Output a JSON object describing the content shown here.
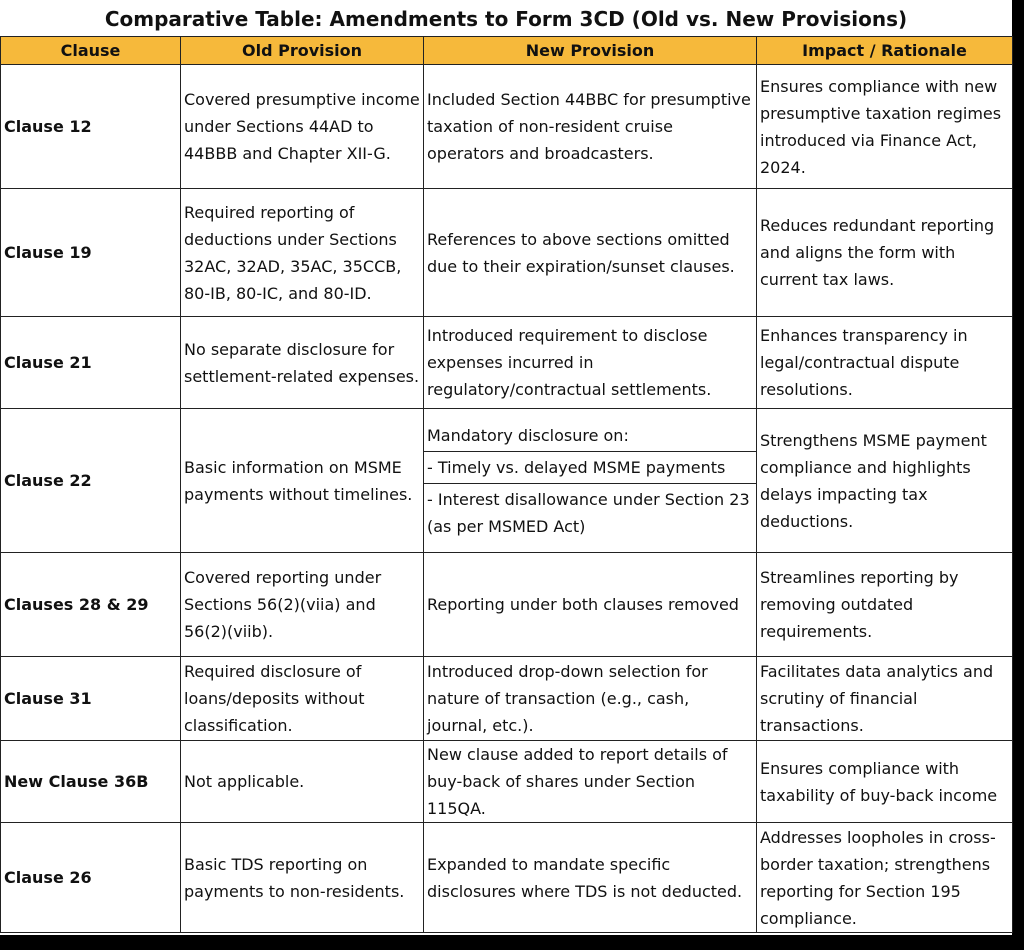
{
  "header": {
    "title": "Comparative Table: Amendments to Form 3CD (Old vs. New Provisions)"
  },
  "table": {
    "columns": [
      "Clause",
      "Old Provision",
      "New Provision",
      "Impact / Rationale"
    ],
    "rows": [
      {
        "clause": "Clause 12",
        "old": "Covered presumptive income under Sections 44AD to 44BBB and Chapter XII-G.",
        "new": [
          "Included Section 44BBC for presumptive taxation of non-resident cruise operators and broadcasters."
        ],
        "impact": "Ensures compliance with new presumptive taxation regimes introduced via Finance Act, 2024."
      },
      {
        "clause": "Clause 19",
        "old": "Required reporting of deductions under Sections 32AC, 32AD, 35AC, 35CCB, 80-IB, 80-IC, and 80-ID.",
        "new": [
          "References to above sections omitted due to their expiration/sunset clauses."
        ],
        "impact": "Reduces redundant reporting and aligns the form with current tax laws."
      },
      {
        "clause": "Clause 21",
        "old": "No separate disclosure for settlement-related expenses.",
        "new": [
          "Introduced requirement to disclose expenses incurred in regulatory/contractual settlements."
        ],
        "impact": "Enhances transparency in legal/contractual dispute resolutions."
      },
      {
        "clause": "Clause 22",
        "old": "Basic information on MSME payments without timelines.",
        "new": [
          "Mandatory disclosure on:",
          "- Timely vs. delayed MSME payments",
          "- Interest disallowance under Section 23 (as per MSMED Act)"
        ],
        "impact": "Strengthens MSME payment compliance and highlights delays impacting tax deductions."
      },
      {
        "clause": "Clauses 28 & 29",
        "old": "Covered reporting under Sections 56(2)(viia) and 56(2)(viib).",
        "new": [
          "Reporting under both clauses removed"
        ],
        "impact": "Streamlines reporting by removing outdated requirements."
      },
      {
        "clause": "Clause 31",
        "old": "Required disclosure of loans/deposits without classification.",
        "new": [
          "Introduced drop-down selection for nature of transaction (e.g., cash, journal, etc.)."
        ],
        "impact": "Facilitates data analytics and scrutiny of financial transactions."
      },
      {
        "clause": "New Clause 36B",
        "old": "Not applicable.",
        "new": [
          "New clause added to report details of buy-back of shares under Section 115QA."
        ],
        "impact": "Ensures compliance with taxability of buy-back income"
      },
      {
        "clause": "Clause 26",
        "old": "Basic TDS reporting on payments to non-residents.",
        "new": [
          "Expanded to mandate specific disclosures where TDS is not deducted."
        ],
        "impact": "Addresses loopholes in cross-border taxation; strengthens reporting for Section 195 compliance."
      }
    ]
  }
}
